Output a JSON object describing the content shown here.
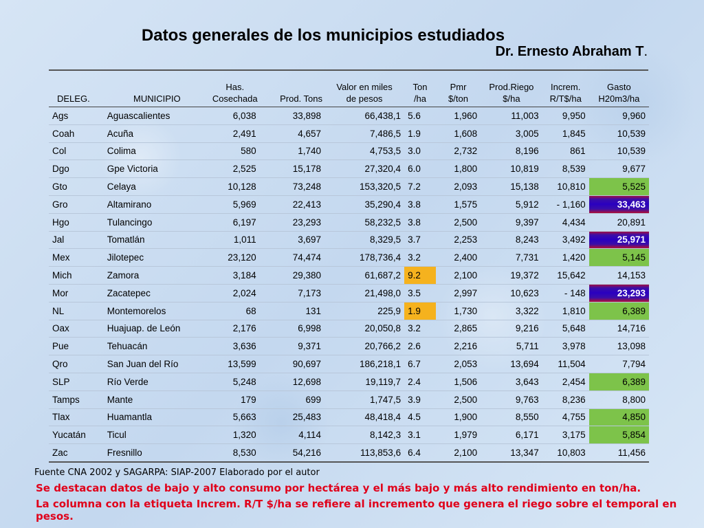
{
  "title": "Datos generales de los municipios estudiados",
  "author": "Dr. Ernesto Abraham T",
  "author_dot": ".",
  "headers": [
    [
      "DELEG."
    ],
    [
      "MUNICIPIO"
    ],
    [
      "Has.",
      "Cosechada"
    ],
    [
      "Prod. Tons"
    ],
    [
      "Valor  en miles",
      "de pesos"
    ],
    [
      "Ton",
      "/ha"
    ],
    [
      "Pmr",
      "$/ton"
    ],
    [
      "Prod.Riego",
      "$/ha"
    ],
    [
      "Increm.",
      "R/T$/ha"
    ],
    [
      "Gasto",
      "H20m3/ha"
    ]
  ],
  "rows": [
    {
      "cells": [
        "Ags",
        "Aguascalientes",
        "6,038",
        "33,898",
        "66,438,1",
        "5.6",
        "1,960",
        "11,003",
        "9,950",
        "9,960"
      ]
    },
    {
      "cells": [
        "Coah",
        "Acuña",
        "2,491",
        "4,657",
        "7,486,5",
        "1.9",
        "1,608",
        "3,005",
        "1,845",
        "10,539"
      ]
    },
    {
      "cells": [
        "Col",
        "Colima",
        "580",
        "1,740",
        "4,753,5",
        "3.0",
        "2,732",
        "8,196",
        "861",
        "10,539"
      ]
    },
    {
      "cells": [
        "Dgo",
        "Gpe Victoria",
        "2,525",
        "15,178",
        "27,320,4",
        "6.0",
        "1,800",
        "10,819",
        "8,539",
        "9,677"
      ]
    },
    {
      "cells": [
        "Gto",
        "Celaya",
        "10,128",
        "73,248",
        "153,320,5",
        "7.2",
        "2,093",
        "15,138",
        "10,810",
        "5,525"
      ],
      "hl": {
        "9": "green"
      }
    },
    {
      "cells": [
        "Gro",
        "Altamirano",
        "5,969",
        "22,413",
        "35,290,4",
        "3.8",
        "1,575",
        "5,912",
        "-  1,160",
        "33,463"
      ],
      "hl": {
        "9": "blue"
      }
    },
    {
      "cells": [
        "Hgo",
        "Tulancingo",
        "6,197",
        "23,293",
        "58,232,5",
        "3.8",
        "2,500",
        "9,397",
        "4,434",
        "20,891"
      ]
    },
    {
      "cells": [
        "Jal",
        "Tomatlán",
        "1,011",
        "3,697",
        "8,329,5",
        "3.7",
        "2,253",
        "8,243",
        "3,492",
        "25,971"
      ],
      "hl": {
        "9": "blue"
      }
    },
    {
      "cells": [
        "Mex",
        "Jilotepec",
        "23,120",
        "74,474",
        "178,736,4",
        "3.2",
        "2,400",
        "7,731",
        "1,420",
        "5,145"
      ],
      "hl": {
        "9": "green"
      }
    },
    {
      "cells": [
        "Mich",
        "Zamora",
        "3,184",
        "29,380",
        "61,687,2",
        "9.2",
        "2,100",
        "19,372",
        "15,642",
        "14,153"
      ],
      "hl": {
        "5": "orange"
      }
    },
    {
      "cells": [
        "Mor",
        "Zacatepec",
        "2,024",
        "7,173",
        "21,498,0",
        "3.5",
        "2,997",
        "10,623",
        "-     148",
        "23,293"
      ],
      "hl": {
        "9": "blue"
      }
    },
    {
      "cells": [
        "NL",
        "Montemorelos",
        "68",
        "131",
        "225,9",
        "1.9",
        "1,730",
        "3,322",
        "1,810",
        "6,389"
      ],
      "hl": {
        "5": "orange",
        "9": "green"
      }
    },
    {
      "cells": [
        "Oax",
        "Huajuap. de León",
        "2,176",
        "6,998",
        "20,050,8",
        "3.2",
        "2,865",
        "9,216",
        "5,648",
        "14,716"
      ]
    },
    {
      "cells": [
        "Pue",
        "Tehuacán",
        "3,636",
        "9,371",
        "20,766,2",
        "2.6",
        "2,216",
        "5,711",
        "3,978",
        "13,098"
      ]
    },
    {
      "cells": [
        "Qro",
        "San Juan del Río",
        "13,599",
        "90,697",
        "186,218,1",
        "6.7",
        "2,053",
        "13,694",
        "11,504",
        "7,794"
      ]
    },
    {
      "cells": [
        "SLP",
        "Río Verde",
        "5,248",
        "12,698",
        "19,119,7",
        "2.4",
        "1,506",
        "3,643",
        "2,454",
        "6,389"
      ],
      "hl": {
        "9": "green"
      }
    },
    {
      "cells": [
        "Tamps",
        "Mante",
        "179",
        "699",
        "1,747,5",
        "3.9",
        "2,500",
        "9,763",
        "8,236",
        "8,800"
      ]
    },
    {
      "cells": [
        "Tlax",
        "Huamantla",
        "5,663",
        "25,483",
        "48,418,4",
        "4.5",
        "1,900",
        "8,550",
        "4,755",
        "4,850"
      ],
      "hl": {
        "9": "green"
      }
    },
    {
      "cells": [
        "Yucatán",
        "Ticul",
        "1,320",
        "4,114",
        "8,142,3",
        "3.1",
        "1,979",
        "6,171",
        "3,175",
        "5,854"
      ],
      "hl": {
        "9": "green"
      }
    },
    {
      "cells": [
        "Zac",
        "Fresnillo",
        "8,530",
        "54,216",
        "113,853,6",
        "6.4",
        "2,100",
        "13,347",
        "10,803",
        "11,456"
      ]
    }
  ],
  "colors": {
    "green": "#7dc34a",
    "orange": "#f5b21e",
    "blue": "#2a00c0",
    "note": "#e0001a"
  },
  "footer": {
    "source": "Fuente  CNA 2002 y SAGARPA: SIAP-2007 Elaborado por el autor",
    "note1": "Se destacan datos de bajo y alto consumo por hectárea y el más bajo y más alto rendimiento en ton/ha.",
    "note2": "La columna con la etiqueta Increm. R/T $/ha se refiere  al incremento que genera el riego sobre el temporal en  pesos."
  }
}
